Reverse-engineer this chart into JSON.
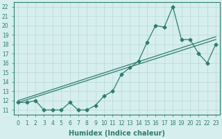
{
  "line1_x": [
    0,
    1,
    2,
    3,
    4,
    5,
    6,
    7,
    8,
    9,
    10,
    11,
    12,
    13,
    14,
    15,
    16,
    17,
    18,
    19,
    20,
    21,
    22,
    23
  ],
  "line1_y": [
    11.8,
    11.8,
    12.0,
    11.0,
    11.0,
    11.0,
    11.8,
    11.0,
    11.0,
    11.5,
    12.5,
    13.0,
    14.8,
    15.5,
    16.2,
    18.2,
    20.0,
    19.8,
    22.0,
    18.5,
    18.5,
    17.0,
    16.0,
    18.0
  ],
  "line2_x": [
    0,
    23
  ],
  "line2_y": [
    11.8,
    18.5
  ],
  "line3_x": [
    0,
    23
  ],
  "line3_y": [
    12.0,
    18.8
  ],
  "line_color": "#2e7d6e",
  "bg_color": "#d6eeee",
  "grid_color": "#b8d8d8",
  "xlabel": "Humidex (Indice chaleur)",
  "ylabel_ticks": [
    11,
    12,
    13,
    14,
    15,
    16,
    17,
    18,
    19,
    20,
    21,
    22
  ],
  "xlim": [
    -0.5,
    23.5
  ],
  "ylim": [
    10.5,
    22.5
  ],
  "xticks": [
    0,
    1,
    2,
    3,
    4,
    5,
    6,
    7,
    8,
    9,
    10,
    11,
    12,
    13,
    14,
    15,
    16,
    17,
    18,
    19,
    20,
    21,
    22,
    23
  ],
  "axis_fontsize": 5.5,
  "marker_size": 2.5,
  "line_width": 0.9
}
